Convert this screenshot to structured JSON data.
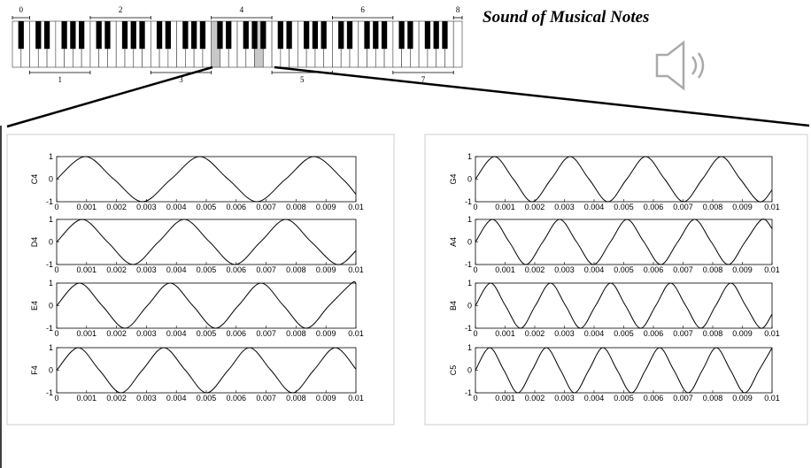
{
  "title": "Sound of Musical Notes",
  "keyboard": {
    "octaves": [
      "0",
      "1",
      "2",
      "3",
      "4",
      "5",
      "6",
      "7",
      "8"
    ]
  },
  "chart_data": [
    {
      "type": "line",
      "ylabel": "C4",
      "color": "#000000",
      "xlim": [
        0,
        0.01
      ],
      "ylim": [
        -1,
        1
      ],
      "xticks": [
        0,
        0.001,
        0.002,
        0.003,
        0.004,
        0.005,
        0.006,
        0.007,
        0.008,
        0.009,
        0.01
      ],
      "yticks": [
        -1,
        0,
        1
      ],
      "x": [
        0,
        0.00096,
        0.00191,
        0.00287,
        0.00382,
        0.00478,
        0.00573,
        0.00669,
        0.00765,
        0.0086,
        0.00956,
        0.01
      ],
      "values": [
        0,
        1,
        0,
        -1,
        0,
        1,
        0,
        -1,
        0,
        1,
        0,
        -0.67
      ]
    },
    {
      "type": "line",
      "ylabel": "D4",
      "color": "#000000",
      "xlim": [
        0,
        0.01
      ],
      "ylim": [
        -1,
        1
      ],
      "xticks": [
        0,
        0.001,
        0.002,
        0.003,
        0.004,
        0.005,
        0.006,
        0.007,
        0.008,
        0.009,
        0.01
      ],
      "yticks": [
        -1,
        0,
        1
      ],
      "x": [
        0,
        0.00085,
        0.0017,
        0.00255,
        0.0034,
        0.00426,
        0.00511,
        0.00596,
        0.00681,
        0.00766,
        0.00851,
        0.00937,
        0.01
      ],
      "values": [
        0,
        1,
        0,
        -1,
        0,
        1,
        0,
        -1,
        0,
        1,
        0,
        -1,
        -0.39
      ]
    },
    {
      "type": "line",
      "ylabel": "E4",
      "color": "#000000",
      "xlim": [
        0,
        0.01
      ],
      "ylim": [
        -1,
        1
      ],
      "xticks": [
        0,
        0.001,
        0.002,
        0.003,
        0.004,
        0.005,
        0.006,
        0.007,
        0.008,
        0.009,
        0.01
      ],
      "yticks": [
        -1,
        0,
        1
      ],
      "x": [
        0,
        0.00076,
        0.00152,
        0.00228,
        0.00303,
        0.00379,
        0.00455,
        0.00531,
        0.00607,
        0.00683,
        0.00758,
        0.00834,
        0.0091,
        0.00986,
        0.01
      ],
      "values": [
        0,
        1,
        0,
        -1,
        0,
        1,
        0,
        -1,
        0,
        1,
        0,
        -1,
        0,
        1,
        0.96
      ]
    },
    {
      "type": "line",
      "ylabel": "F4",
      "color": "#000000",
      "xlim": [
        0,
        0.01
      ],
      "ylim": [
        -1,
        1
      ],
      "xticks": [
        0,
        0.001,
        0.002,
        0.003,
        0.004,
        0.005,
        0.006,
        0.007,
        0.008,
        0.009,
        0.01
      ],
      "yticks": [
        -1,
        0,
        1
      ],
      "x": [
        0,
        0.00072,
        0.00143,
        0.00215,
        0.00286,
        0.00358,
        0.0043,
        0.00501,
        0.00573,
        0.00644,
        0.00716,
        0.00788,
        0.00859,
        0.00931,
        0.01
      ],
      "values": [
        0,
        1,
        0,
        -1,
        0,
        1,
        0,
        -1,
        0,
        1,
        0,
        -1,
        0,
        1,
        0.05
      ]
    },
    {
      "type": "line",
      "ylabel": "G4",
      "color": "#000000",
      "xlim": [
        0,
        0.01
      ],
      "ylim": [
        -1,
        1
      ],
      "xticks": [
        0,
        0.001,
        0.002,
        0.003,
        0.004,
        0.005,
        0.006,
        0.007,
        0.008,
        0.009,
        0.01
      ],
      "yticks": [
        -1,
        0,
        1
      ],
      "x": [
        0,
        0.00064,
        0.00128,
        0.00191,
        0.00255,
        0.00319,
        0.00383,
        0.00447,
        0.0051,
        0.00574,
        0.00638,
        0.00702,
        0.00765,
        0.00829,
        0.00893,
        0.00957,
        0.01
      ],
      "values": [
        0,
        1,
        0,
        -1,
        0,
        1,
        0,
        -1,
        0,
        1,
        0,
        -1,
        0,
        1,
        0,
        -1,
        -0.48
      ]
    },
    {
      "type": "line",
      "ylabel": "A4",
      "color": "#000000",
      "xlim": [
        0,
        0.01
      ],
      "ylim": [
        -1,
        1
      ],
      "xticks": [
        0,
        0.001,
        0.002,
        0.003,
        0.004,
        0.005,
        0.006,
        0.007,
        0.008,
        0.009,
        0.01
      ],
      "yticks": [
        -1,
        0,
        1
      ],
      "x": [
        0,
        0.00057,
        0.00114,
        0.0017,
        0.00227,
        0.00284,
        0.00341,
        0.00398,
        0.00455,
        0.00511,
        0.00568,
        0.00625,
        0.00682,
        0.00739,
        0.00795,
        0.00852,
        0.00909,
        0.00966,
        0.01
      ],
      "values": [
        0,
        1,
        0,
        -1,
        0,
        1,
        0,
        -1,
        0,
        1,
        0,
        -1,
        0,
        1,
        0,
        -1,
        0,
        1,
        0.59
      ]
    },
    {
      "type": "line",
      "ylabel": "B4",
      "color": "#000000",
      "xlim": [
        0,
        0.01
      ],
      "ylim": [
        -1,
        1
      ],
      "xticks": [
        0,
        0.001,
        0.002,
        0.003,
        0.004,
        0.005,
        0.006,
        0.007,
        0.008,
        0.009,
        0.01
      ],
      "yticks": [
        -1,
        0,
        1
      ],
      "x": [
        0,
        0.00051,
        0.00101,
        0.00152,
        0.00202,
        0.00253,
        0.00304,
        0.00354,
        0.00405,
        0.00456,
        0.00506,
        0.00557,
        0.00608,
        0.00658,
        0.00709,
        0.0076,
        0.0081,
        0.00861,
        0.00911,
        0.00962,
        0.01
      ],
      "values": [
        0,
        1,
        0,
        -1,
        0,
        1,
        0,
        -1,
        0,
        1,
        0,
        -1,
        0,
        1,
        0,
        -1,
        0,
        1,
        0,
        -1,
        -0.38
      ]
    },
    {
      "type": "line",
      "ylabel": "C5",
      "color": "#000000",
      "xlim": [
        0,
        0.01
      ],
      "ylim": [
        -1,
        1
      ],
      "xticks": [
        0,
        0.001,
        0.002,
        0.003,
        0.004,
        0.005,
        0.006,
        0.007,
        0.008,
        0.009,
        0.01
      ],
      "yticks": [
        -1,
        0,
        1
      ],
      "x": [
        0,
        0.00048,
        0.00096,
        0.00143,
        0.00191,
        0.00239,
        0.00287,
        0.00334,
        0.00382,
        0.0043,
        0.00478,
        0.00526,
        0.00573,
        0.00621,
        0.00669,
        0.00717,
        0.00765,
        0.00812,
        0.0086,
        0.00908,
        0.00956,
        0.01
      ],
      "values": [
        0,
        1,
        0,
        -1,
        0,
        1,
        0,
        -1,
        0,
        1,
        0,
        -1,
        0,
        1,
        0,
        -1,
        0,
        1,
        0,
        -1,
        0,
        0.99
      ]
    }
  ]
}
